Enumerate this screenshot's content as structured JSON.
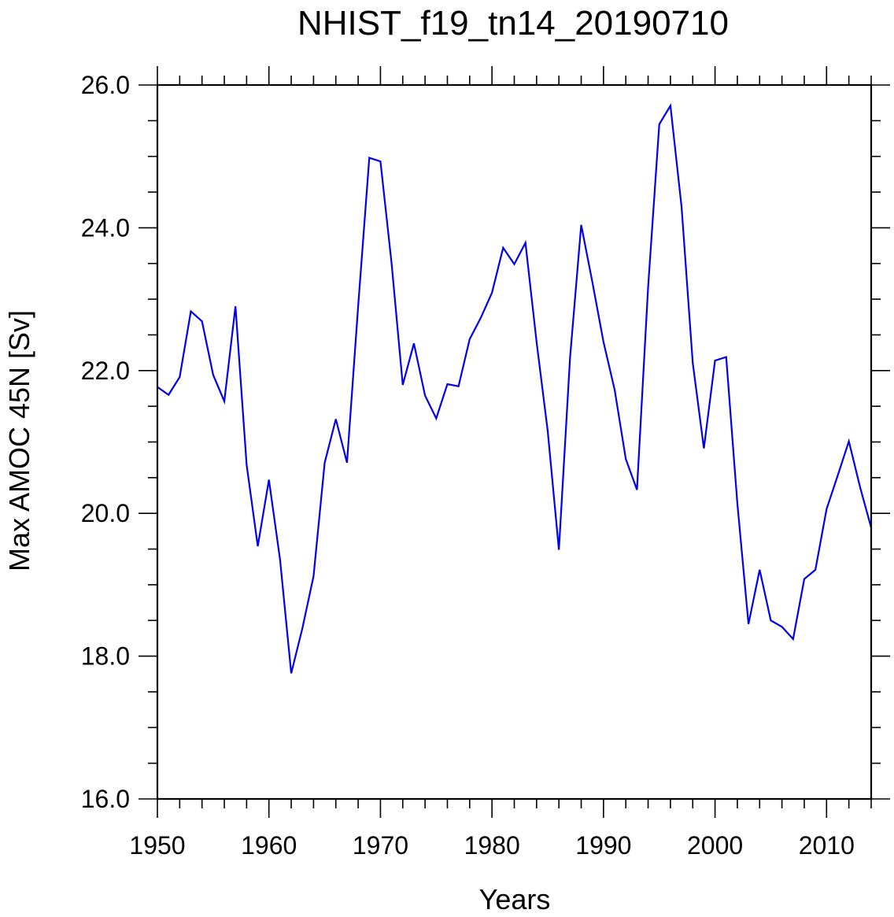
{
  "chart_data": {
    "type": "line",
    "title": "NHIST_f19_tn14_20190710",
    "xlabel": "Years",
    "ylabel": "Max AMOC 45N [Sv]",
    "xlim": [
      1950,
      2014
    ],
    "ylim": [
      16.0,
      26.0
    ],
    "grid": false,
    "x_major_ticks": [
      1950,
      1960,
      1970,
      1980,
      1990,
      2000,
      2010
    ],
    "x_tick_labels": [
      "1950",
      "1960",
      "1970",
      "1980",
      "1990",
      "2000",
      "2010"
    ],
    "y_major_ticks": [
      16.0,
      18.0,
      20.0,
      22.0,
      24.0,
      26.0
    ],
    "y_tick_labels": [
      "16.0",
      "18.0",
      "20.0",
      "22.0",
      "24.0",
      "26.0"
    ],
    "line_color": "#0000ee",
    "series": [
      {
        "name": "AMOC 45N",
        "x": [
          1950,
          1951,
          1952,
          1953,
          1954,
          1955,
          1956,
          1957,
          1958,
          1959,
          1960,
          1961,
          1962,
          1963,
          1964,
          1965,
          1966,
          1967,
          1968,
          1969,
          1970,
          1971,
          1972,
          1973,
          1974,
          1975,
          1976,
          1977,
          1978,
          1979,
          1980,
          1981,
          1982,
          1983,
          1984,
          1985,
          1986,
          1987,
          1988,
          1989,
          1990,
          1991,
          1992,
          1993,
          1994,
          1995,
          1996,
          1997,
          1998,
          1999,
          2000,
          2001,
          2002,
          2003,
          2004,
          2005,
          2006,
          2007,
          2008,
          2009,
          2010,
          2011,
          2012,
          2013,
          2014
        ],
        "values": [
          21.77,
          21.66,
          21.91,
          22.83,
          22.69,
          21.94,
          21.57,
          22.9,
          20.68,
          19.54,
          20.47,
          19.35,
          17.76,
          18.39,
          19.12,
          20.71,
          21.32,
          20.71,
          22.9,
          24.98,
          24.93,
          23.5,
          21.8,
          22.38,
          21.65,
          21.33,
          21.81,
          21.78,
          22.44,
          22.74,
          23.09,
          23.72,
          23.49,
          23.79,
          22.4,
          21.15,
          19.49,
          22.18,
          24.04,
          23.24,
          22.4,
          21.73,
          20.76,
          20.33,
          23.17,
          25.45,
          25.71,
          24.29,
          22.11,
          20.91,
          22.14,
          22.19,
          20.14,
          18.45,
          19.21,
          18.5,
          18.41,
          18.24,
          19.08,
          19.21,
          20.06,
          20.53,
          21.01,
          20.37,
          19.8
        ]
      }
    ]
  }
}
